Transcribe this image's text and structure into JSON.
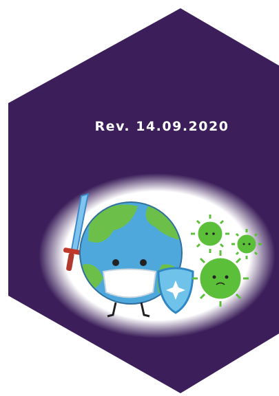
{
  "revision": "Rev. 14.09.2020"
}
